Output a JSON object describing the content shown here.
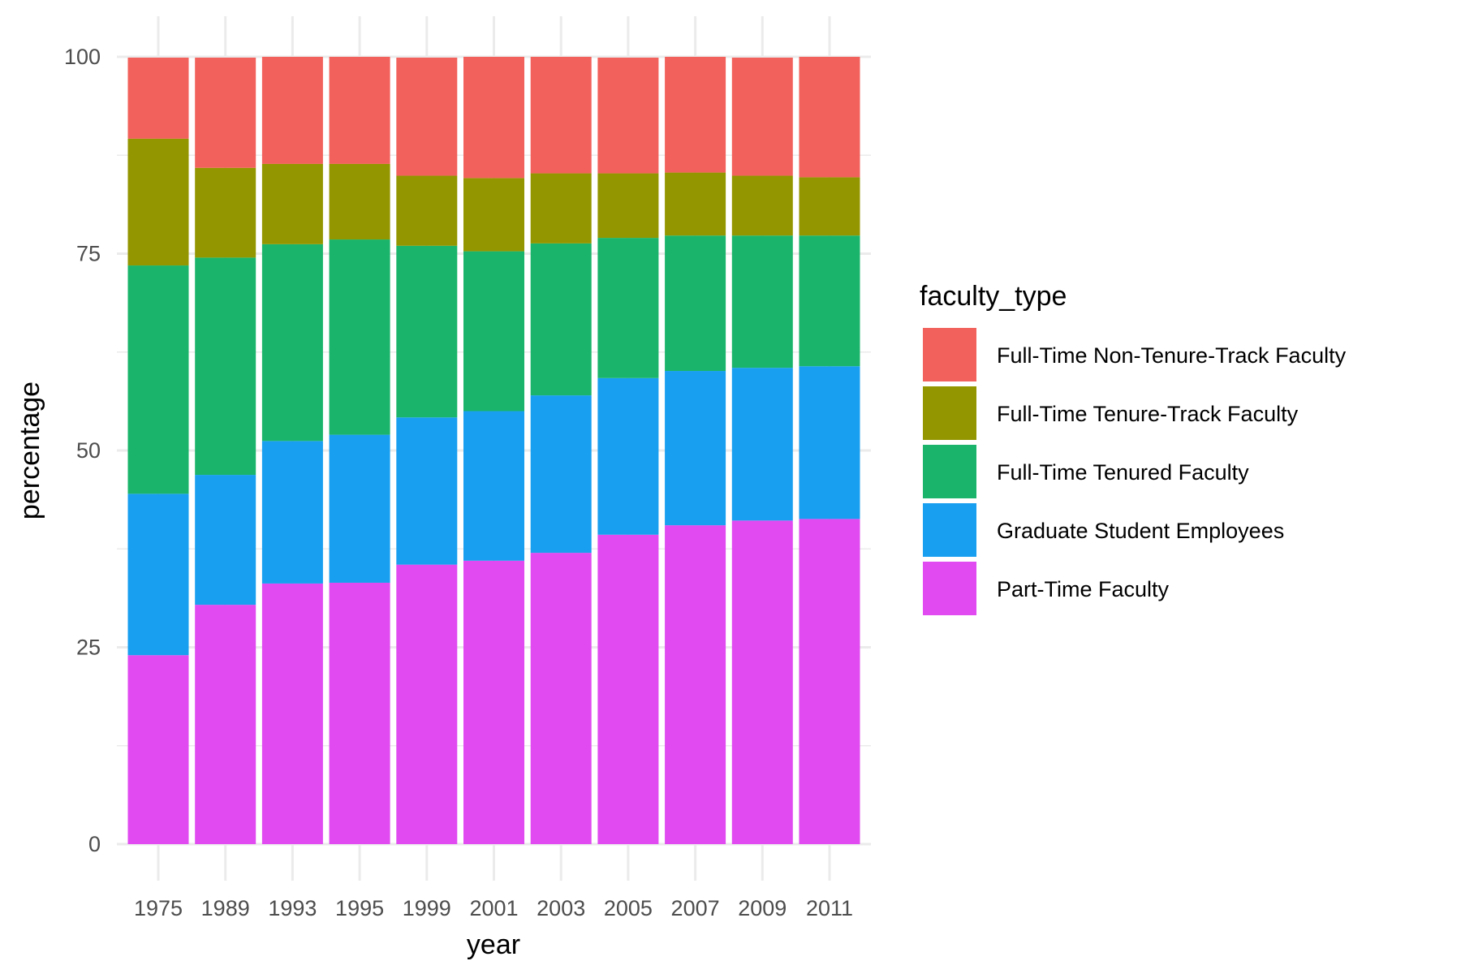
{
  "chart_data": {
    "type": "bar",
    "stacked": true,
    "xlabel": "year",
    "ylabel": "percentage",
    "ylim": [
      0,
      100
    ],
    "yticks": [
      "0",
      "25",
      "50",
      "75",
      "100"
    ],
    "grid": true,
    "legend": {
      "title": "faculty_type",
      "position": "right"
    },
    "categories": [
      "1975",
      "1989",
      "1993",
      "1995",
      "1999",
      "2001",
      "2003",
      "2005",
      "2007",
      "2009",
      "2011"
    ],
    "series": [
      {
        "name": "Part-Time Faculty",
        "color": "#E04AF0",
        "values": [
          24.0,
          30.4,
          33.1,
          33.2,
          35.5,
          36.0,
          37.0,
          39.3,
          40.5,
          41.1,
          41.3
        ]
      },
      {
        "name": "Graduate Student Employees",
        "color": "#189FF0",
        "values": [
          20.5,
          16.5,
          18.1,
          18.8,
          18.7,
          19.0,
          20.0,
          19.9,
          19.6,
          19.4,
          19.4
        ]
      },
      {
        "name": "Full-Time Tenured Faculty",
        "color": "#1AB56A",
        "values": [
          29.0,
          27.6,
          25.0,
          24.8,
          21.8,
          20.3,
          19.3,
          17.8,
          17.2,
          16.8,
          16.6
        ]
      },
      {
        "name": "Full-Time Tenure-Track Faculty",
        "color": "#949600",
        "values": [
          16.1,
          11.4,
          10.2,
          9.6,
          8.9,
          9.3,
          8.9,
          8.2,
          8.0,
          7.6,
          7.4
        ]
      },
      {
        "name": "Full-Time Non-Tenure-Track Faculty",
        "color": "#F2615B",
        "values": [
          10.3,
          14.0,
          13.6,
          13.6,
          15.0,
          15.4,
          14.8,
          14.7,
          14.7,
          15.0,
          15.3
        ]
      }
    ],
    "legend_order": [
      "Full-Time Non-Tenure-Track Faculty",
      "Full-Time Tenure-Track Faculty",
      "Full-Time Tenured Faculty",
      "Graduate Student Employees",
      "Part-Time Faculty"
    ]
  }
}
